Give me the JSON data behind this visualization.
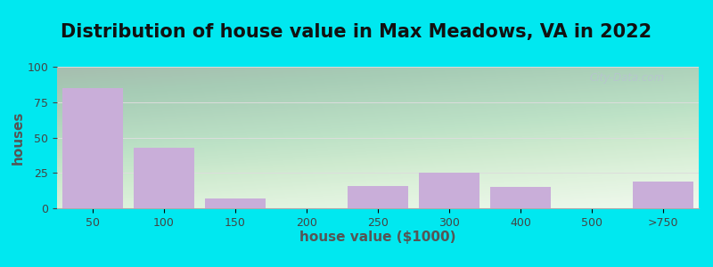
{
  "title": "Distribution of house value in Max Meadows, VA in 2022",
  "xlabel": "house value ($1000)",
  "ylabel": "houses",
  "categories": [
    "50",
    "100",
    "150",
    "200",
    "250",
    "300",
    "400",
    "500",
    ">750"
  ],
  "values": [
    85,
    43,
    7,
    0,
    16,
    25,
    15,
    0,
    19
  ],
  "bar_color": "#c9aed9",
  "ylim": [
    0,
    100
  ],
  "yticks": [
    0,
    25,
    50,
    75,
    100
  ],
  "background_outer": "#00e8f0",
  "grid_color": "#dddddd",
  "title_fontsize": 15,
  "axis_label_fontsize": 11,
  "tick_fontsize": 9,
  "watermark": "City-Data.com"
}
